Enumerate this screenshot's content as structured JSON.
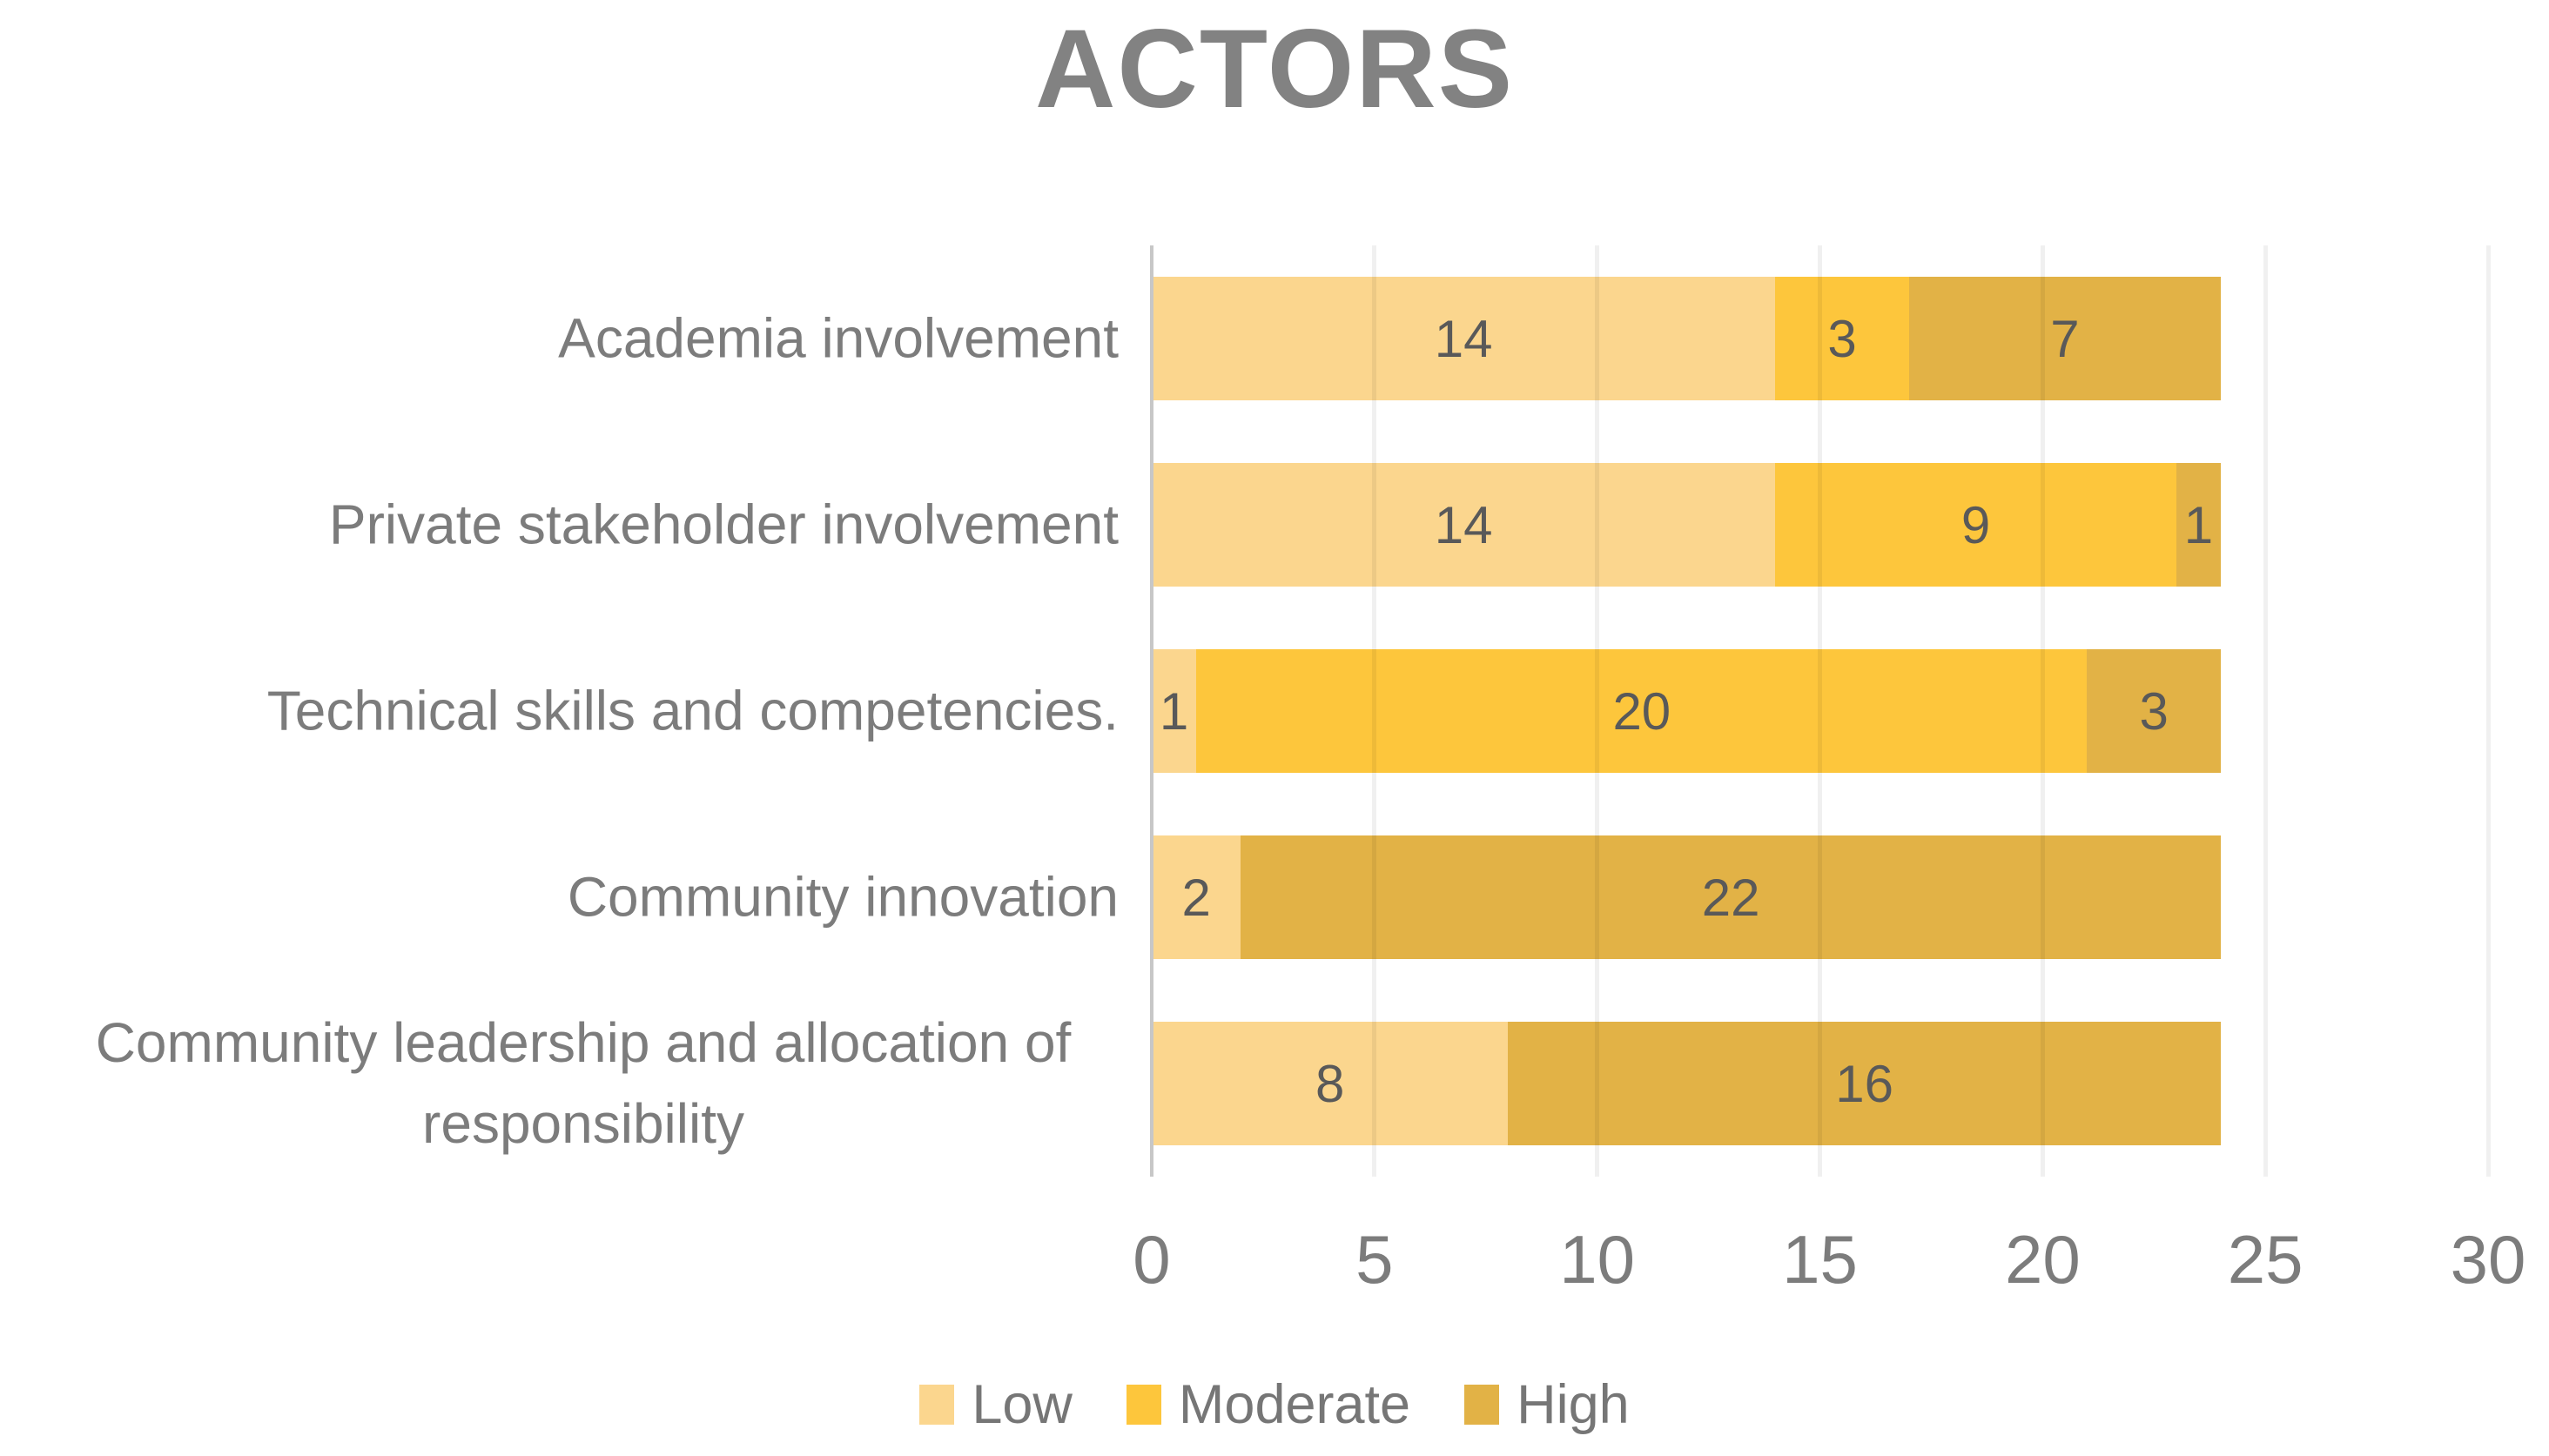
{
  "title": "ACTORS",
  "colors": {
    "low": "#FBD68E",
    "moderate": "#FDC63C",
    "high": "#E2B246",
    "title_text": "#828282",
    "axis_text": "#7C7C7C",
    "data_label_text": "#595959",
    "gridline": "rgba(0,0,0,0.06)",
    "axis_line": "#C7C7C7"
  },
  "chart_data": {
    "type": "bar",
    "orientation": "horizontal",
    "stacked": true,
    "title": "ACTORS",
    "categories": [
      "Academia involvement",
      "Private stakeholder involvement",
      "Technical skills and competencies.",
      "Community innovation",
      "Community leadership and allocation of responsibility"
    ],
    "series": [
      {
        "name": "Low",
        "color_key": "low",
        "values": [
          14,
          14,
          1,
          2,
          8
        ]
      },
      {
        "name": "Moderate",
        "color_key": "moderate",
        "values": [
          3,
          9,
          20,
          0,
          0
        ]
      },
      {
        "name": "High",
        "color_key": "high",
        "values": [
          7,
          1,
          3,
          22,
          16
        ]
      }
    ],
    "xlim": [
      0,
      30
    ],
    "xticks": [
      0,
      5,
      10,
      15,
      20,
      25,
      30
    ],
    "grid": true,
    "legend_position": "bottom"
  }
}
